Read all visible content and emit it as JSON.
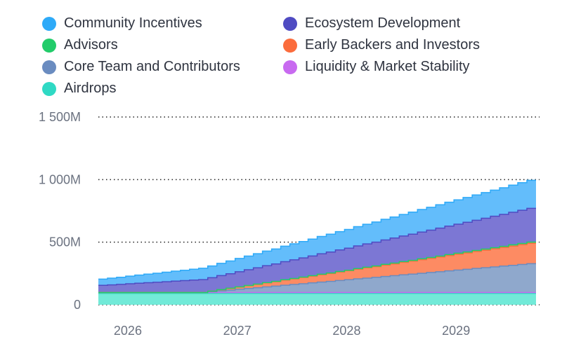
{
  "chart_data": {
    "type": "area",
    "stacked": true,
    "step": true,
    "legend_position": "top",
    "ylim": [
      0,
      1500
    ],
    "yticks": [
      {
        "value": 0,
        "label": "0"
      },
      {
        "value": 500,
        "label": "500M"
      },
      {
        "value": 1000,
        "label": "1 000M"
      },
      {
        "value": 1500,
        "label": "1 500M"
      }
    ],
    "xticks": [
      {
        "value": "2026-01",
        "label": "2026"
      },
      {
        "value": "2027-01",
        "label": "2027"
      },
      {
        "value": "2028-01",
        "label": "2028"
      },
      {
        "value": "2029-01",
        "label": "2029"
      }
    ],
    "x": [
      "2025-10",
      "2025-11",
      "2025-12",
      "2026-01",
      "2026-02",
      "2026-03",
      "2026-04",
      "2026-05",
      "2026-06",
      "2026-07",
      "2026-08",
      "2026-09",
      "2026-10",
      "2026-11",
      "2026-12",
      "2027-01",
      "2027-02",
      "2027-03",
      "2027-04",
      "2027-05",
      "2027-06",
      "2027-07",
      "2027-08",
      "2027-09",
      "2027-10",
      "2027-11",
      "2027-12",
      "2028-01",
      "2028-02",
      "2028-03",
      "2028-04",
      "2028-05",
      "2028-06",
      "2028-07",
      "2028-08",
      "2028-09",
      "2028-10",
      "2028-11",
      "2028-12",
      "2029-01",
      "2029-02",
      "2029-03",
      "2029-04",
      "2029-05",
      "2029-06",
      "2029-07",
      "2029-08",
      "2029-09"
    ],
    "grid": "horizontal-dotted",
    "series": [
      {
        "name": "Airdrops",
        "color": "#2fd9c4",
        "fill": "#72ead8",
        "values": [
          90,
          90,
          90,
          90,
          90,
          90,
          90,
          90,
          90,
          90,
          90,
          90,
          90,
          90,
          90,
          90,
          90,
          90,
          90,
          90,
          90,
          90,
          90,
          90,
          90,
          90,
          90,
          90,
          90,
          90,
          90,
          90,
          90,
          90,
          90,
          90,
          90,
          90,
          90,
          90,
          90,
          90,
          90,
          90,
          90,
          90,
          90,
          90
        ]
      },
      {
        "name": "Liquidity & Market Stability",
        "color": "#c86af0",
        "fill": "#c68ae6",
        "values": [
          8,
          8,
          8,
          8,
          8,
          8,
          8,
          8,
          8,
          8,
          8,
          8,
          8,
          8,
          8,
          8,
          8,
          8,
          8,
          8,
          8,
          8,
          8,
          8,
          8,
          8,
          8,
          8,
          8,
          8,
          8,
          8,
          8,
          8,
          8,
          8,
          8,
          8,
          8,
          8,
          8,
          8,
          8,
          8,
          8,
          8,
          8,
          8
        ]
      },
      {
        "name": "Core Team and Contributors",
        "color": "#6a8cc0",
        "fill": "#8fa8cc",
        "values": [
          0,
          0,
          0,
          0,
          0,
          0,
          0,
          0,
          0,
          0,
          0,
          0,
          6,
          13,
          19,
          26,
          32,
          38,
          45,
          51,
          58,
          64,
          70,
          77,
          83,
          89,
          96,
          102,
          109,
          115,
          121,
          128,
          134,
          141,
          147,
          153,
          160,
          166,
          173,
          179,
          185,
          192,
          198,
          204,
          211,
          217,
          224,
          230
        ]
      },
      {
        "name": "Early Backers and Investors",
        "color": "#fb6c3c",
        "fill": "#fd8b63",
        "values": [
          0,
          0,
          0,
          0,
          0,
          0,
          0,
          0,
          0,
          0,
          0,
          0,
          5,
          9,
          14,
          18,
          23,
          27,
          32,
          36,
          41,
          45,
          50,
          54,
          59,
          63,
          68,
          72,
          77,
          82,
          86,
          91,
          95,
          100,
          104,
          109,
          113,
          118,
          122,
          127,
          131,
          136,
          140,
          145,
          149,
          154,
          158,
          163
        ]
      },
      {
        "name": "Advisors",
        "color": "#22cc6a",
        "fill": "#5ad68a",
        "values": [
          0,
          0,
          0,
          0,
          0,
          0,
          0,
          0,
          0,
          0,
          0,
          0,
          0,
          1,
          1,
          1,
          1,
          2,
          2,
          2,
          3,
          3,
          3,
          3,
          4,
          4,
          4,
          4,
          5,
          5,
          5,
          6,
          6,
          6,
          6,
          7,
          7,
          7,
          8,
          8,
          8,
          8,
          9,
          9,
          9,
          10,
          10,
          10
        ]
      },
      {
        "name": "Ecosystem Development",
        "color": "#4f4bc2",
        "fill": "#7c77d4",
        "values": [
          57,
          61,
          65,
          70,
          74,
          78,
          82,
          86,
          91,
          95,
          99,
          103,
          107,
          112,
          116,
          121,
          126,
          130,
          135,
          139,
          144,
          149,
          153,
          158,
          163,
          167,
          172,
          176,
          181,
          186,
          190,
          195,
          200,
          204,
          209,
          214,
          218,
          223,
          227,
          232,
          237,
          241,
          246,
          251,
          255,
          260,
          265,
          269
        ]
      },
      {
        "name": "Community Incentives",
        "color": "#2eaaf8",
        "fill": "#63bdfb",
        "values": [
          50,
          54,
          57,
          61,
          65,
          69,
          72,
          76,
          80,
          83,
          87,
          91,
          94,
          98,
          102,
          106,
          109,
          113,
          117,
          120,
          124,
          128,
          131,
          135,
          139,
          143,
          146,
          150,
          154,
          157,
          161,
          165,
          168,
          172,
          176,
          180,
          183,
          187,
          191,
          194,
          198,
          202,
          205,
          209,
          213,
          217,
          220,
          224
        ]
      }
    ]
  },
  "legend": [
    {
      "name": "Community Incentives",
      "color": "#2eaaf8"
    },
    {
      "name": "Ecosystem Development",
      "color": "#4f4bc2"
    },
    {
      "name": "Advisors",
      "color": "#22cc6a"
    },
    {
      "name": "Early Backers and Investors",
      "color": "#fb6c3c"
    },
    {
      "name": "Core Team and Contributors",
      "color": "#6a8cc0"
    },
    {
      "name": "Liquidity & Market Stability",
      "color": "#c86af0"
    },
    {
      "name": "Airdrops",
      "color": "#2fd9c4"
    }
  ]
}
